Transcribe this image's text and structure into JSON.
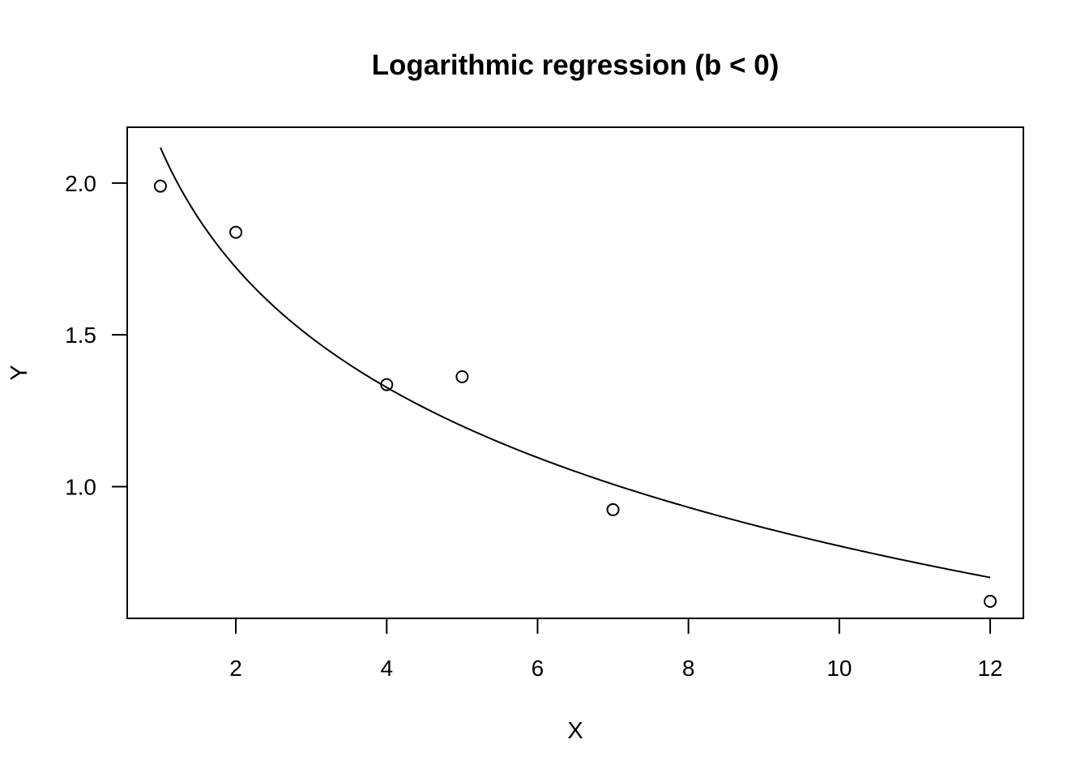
{
  "chart_data": {
    "type": "scatter",
    "title": "Logarithmic regression (b < 0)",
    "xlabel": "X",
    "ylabel": "Y",
    "xlim": [
      0.56,
      12.44
    ],
    "ylim": [
      0.566,
      2.184
    ],
    "x_ticks": [
      2,
      4,
      6,
      8,
      10,
      12
    ],
    "x_tick_labels": [
      "2",
      "4",
      "6",
      "8",
      "10",
      "12"
    ],
    "y_ticks": [
      1.0,
      1.5,
      2.0
    ],
    "y_tick_labels": [
      "1.0",
      "1.5",
      "2.0"
    ],
    "grid": false,
    "points": [
      {
        "x": 1,
        "y": 1.99
      },
      {
        "x": 2,
        "y": 1.838
      },
      {
        "x": 4,
        "y": 1.336
      },
      {
        "x": 5,
        "y": 1.362
      },
      {
        "x": 7,
        "y": 0.924
      },
      {
        "x": 12,
        "y": 0.622
      }
    ],
    "fit": {
      "model": "y = a + b*ln(x)",
      "a": 2.117,
      "b": -0.57,
      "x_range": [
        1,
        12
      ]
    }
  }
}
